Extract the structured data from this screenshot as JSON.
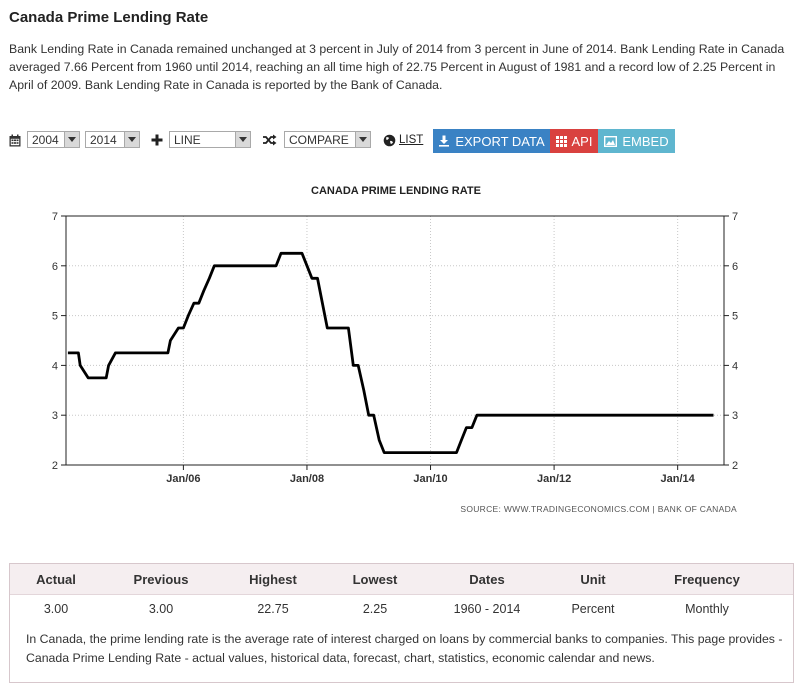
{
  "page": {
    "title": "Canada Prime Lending Rate",
    "description": "Bank Lending Rate in Canada remained unchanged at 3 percent in July of 2014 from 3 percent in June of 2014. Bank Lending Rate in Canada averaged 7.66 Percent from 1960 until 2014, reaching an all time high of 22.75 Percent in August of 1981 and a record low of 2.25 Percent in April of 2009. Bank Lending Rate in Canada is reported by the Bank of Canada."
  },
  "toolbar": {
    "calendar_icon": "calendar-icon",
    "start_year": "2004",
    "end_year": "2014",
    "plus_icon": "plus-icon",
    "chart_type": "LINE",
    "shuffle_icon": "shuffle-icon",
    "compare": "COMPARE",
    "globe_icon": "globe-icon",
    "list_label": "LIST",
    "export_label": "EXPORT DATA",
    "api_label": "API",
    "embed_label": "EMBED",
    "colors": {
      "export": "#3a82c4",
      "api": "#d9413f",
      "embed": "#5fb6cf"
    }
  },
  "chart_data": {
    "type": "line",
    "title": "CANADA PRIME LENDING RATE",
    "source": "SOURCE: WWW.TRADINGECONOMICS.COM  |  BANK OF CANADA",
    "xlim": [
      2004.1,
      2014.75
    ],
    "ylim": [
      2,
      7
    ],
    "yticks": [
      2,
      3,
      4,
      5,
      6,
      7
    ],
    "xticks": [
      {
        "value": 2006,
        "label": "Jan/06"
      },
      {
        "value": 2008,
        "label": "Jan/08"
      },
      {
        "value": 2010,
        "label": "Jan/10"
      },
      {
        "value": 2012,
        "label": "Jan/12"
      },
      {
        "value": 2014,
        "label": "Jan/14"
      }
    ],
    "grid": true,
    "line_color": "#000000",
    "series": [
      {
        "name": "Canada Prime Lending Rate",
        "x": [
          2004.13,
          2004.3,
          2004.33,
          2004.46,
          2004.75,
          2004.79,
          2004.9,
          2004.96,
          2005.75,
          2005.79,
          2005.92,
          2006.0,
          2006.08,
          2006.17,
          2006.25,
          2006.33,
          2006.42,
          2006.5,
          2007.5,
          2007.58,
          2007.92,
          2008.0,
          2008.08,
          2008.17,
          2008.25,
          2008.33,
          2008.67,
          2008.75,
          2008.83,
          2008.92,
          2009.0,
          2009.08,
          2009.17,
          2009.25,
          2009.33,
          2010.42,
          2010.5,
          2010.58,
          2010.67,
          2010.75,
          2010.83,
          2014.58
        ],
        "values": [
          4.25,
          4.25,
          4.0,
          3.75,
          3.75,
          4.0,
          4.25,
          4.25,
          4.25,
          4.5,
          4.75,
          4.75,
          5.0,
          5.25,
          5.25,
          5.5,
          5.75,
          6.0,
          6.0,
          6.25,
          6.25,
          6.0,
          5.75,
          5.75,
          5.25,
          4.75,
          4.75,
          4.0,
          4.0,
          3.5,
          3.0,
          3.0,
          2.5,
          2.25,
          2.25,
          2.25,
          2.5,
          2.75,
          2.75,
          3.0,
          3.0,
          3.0
        ]
      }
    ]
  },
  "stats": {
    "headers": [
      "Actual",
      "Previous",
      "Highest",
      "Lowest",
      "Dates",
      "Unit",
      "Frequency"
    ],
    "values": [
      "3.00",
      "3.00",
      "22.75",
      "2.25",
      "1960 - 2014",
      "Percent",
      "Monthly"
    ],
    "note": "In Canada, the prime lending rate is the average rate of interest charged on loans by commercial banks to companies. This page provides - Canada Prime Lending Rate - actual values, historical data, forecast, chart, statistics, economic calendar and news."
  }
}
